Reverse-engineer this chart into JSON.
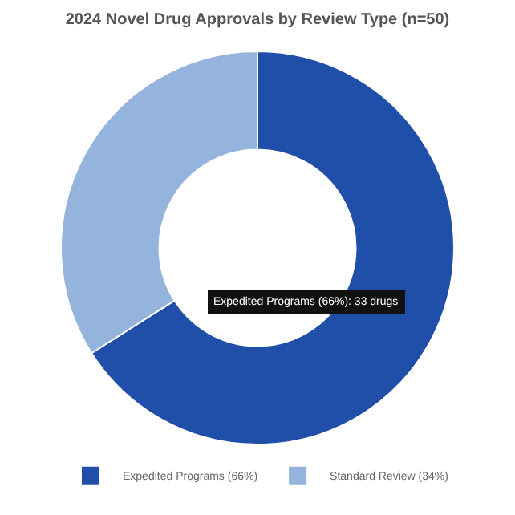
{
  "chart_data": {
    "type": "donut",
    "title": "2024 Novel Drug Approvals by Review Type (n=50)",
    "categories": [
      "Expedited Programs (66%)",
      "Standard Review (34%)"
    ],
    "values": [
      66,
      34
    ],
    "colors": [
      "#1f4fa8",
      "#94b3dd"
    ],
    "annotations": [
      "Expedited Programs (66%): 33 drugs"
    ],
    "legend": "bottom"
  }
}
